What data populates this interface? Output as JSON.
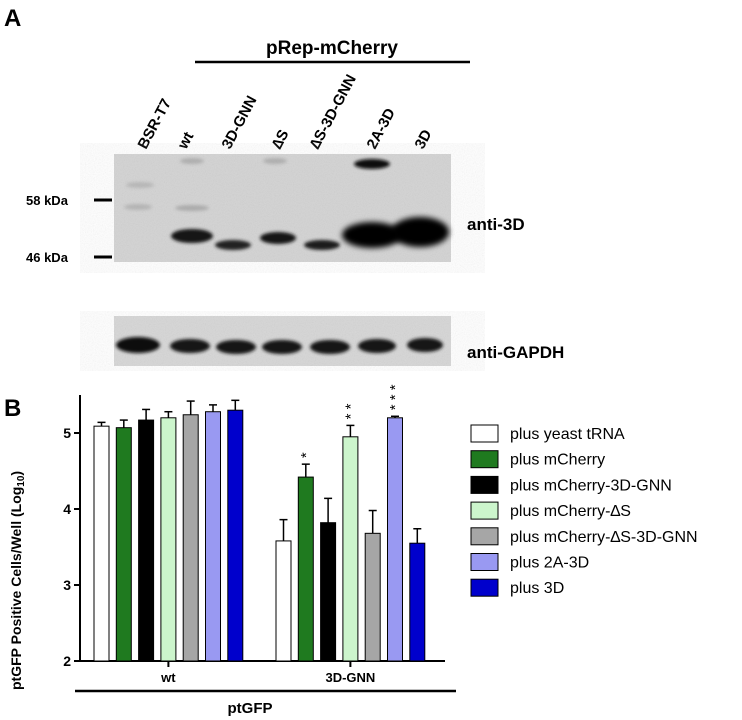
{
  "panel_a": {
    "label": "A",
    "construct_header": "pRep-mCherry",
    "lanes": [
      "BSR-T7",
      "wt",
      "3D-GNN",
      "∆S",
      "∆S-3D-GNN",
      "2A-3D",
      "3D"
    ],
    "markers": [
      "58 kDa",
      "46 kDa"
    ],
    "blot_labels": [
      "anti-3D",
      "anti-GAPDH"
    ]
  },
  "panel_b": {
    "label": "B",
    "group_header": "ptGFP",
    "significance": [
      "*",
      "**",
      "***"
    ]
  },
  "chart_data": {
    "type": "bar",
    "categories": [
      "wt",
      "3D-GNN"
    ],
    "ylabel_main": "ptGFP Positive Cells/Well  (Log",
    "ylabel_sub": "10",
    "ylabel_close": ")",
    "ylim": [
      2,
      5.5
    ],
    "yticks": [
      2,
      3,
      4,
      5
    ],
    "grid": false,
    "legend_position": "right",
    "series": [
      {
        "name": "plus yeast tRNA",
        "color": "#ffffff",
        "values": [
          5.09,
          3.58
        ],
        "errors": [
          0.05,
          0.28
        ],
        "sig": [
          "",
          ""
        ]
      },
      {
        "name": "plus mCherry",
        "color": "#1f7a1f",
        "values": [
          5.07,
          4.42
        ],
        "errors": [
          0.1,
          0.17
        ],
        "sig": [
          "",
          "*"
        ]
      },
      {
        "name": "plus mCherry-3D-GNN",
        "color": "#000000",
        "values": [
          5.17,
          3.82
        ],
        "errors": [
          0.14,
          0.32
        ],
        "sig": [
          "",
          ""
        ]
      },
      {
        "name": "plus mCherry-∆S",
        "color": "#ccf5cc",
        "values": [
          5.2,
          4.95
        ],
        "errors": [
          0.08,
          0.15
        ],
        "sig": [
          "",
          "**"
        ]
      },
      {
        "name": "plus mCherry-∆S-3D-GNN",
        "color": "#a6a6a6",
        "values": [
          5.24,
          3.68
        ],
        "errors": [
          0.18,
          0.3
        ],
        "sig": [
          "",
          ""
        ]
      },
      {
        "name": "plus 2A-3D",
        "color": "#9999f2",
        "values": [
          5.28,
          5.2
        ],
        "errors": [
          0.09,
          0.02
        ],
        "sig": [
          "",
          "***"
        ]
      },
      {
        "name": "plus 3D",
        "color": "#0000cc",
        "values": [
          5.3,
          3.55
        ],
        "errors": [
          0.13,
          0.19
        ],
        "sig": [
          "",
          ""
        ]
      }
    ]
  }
}
